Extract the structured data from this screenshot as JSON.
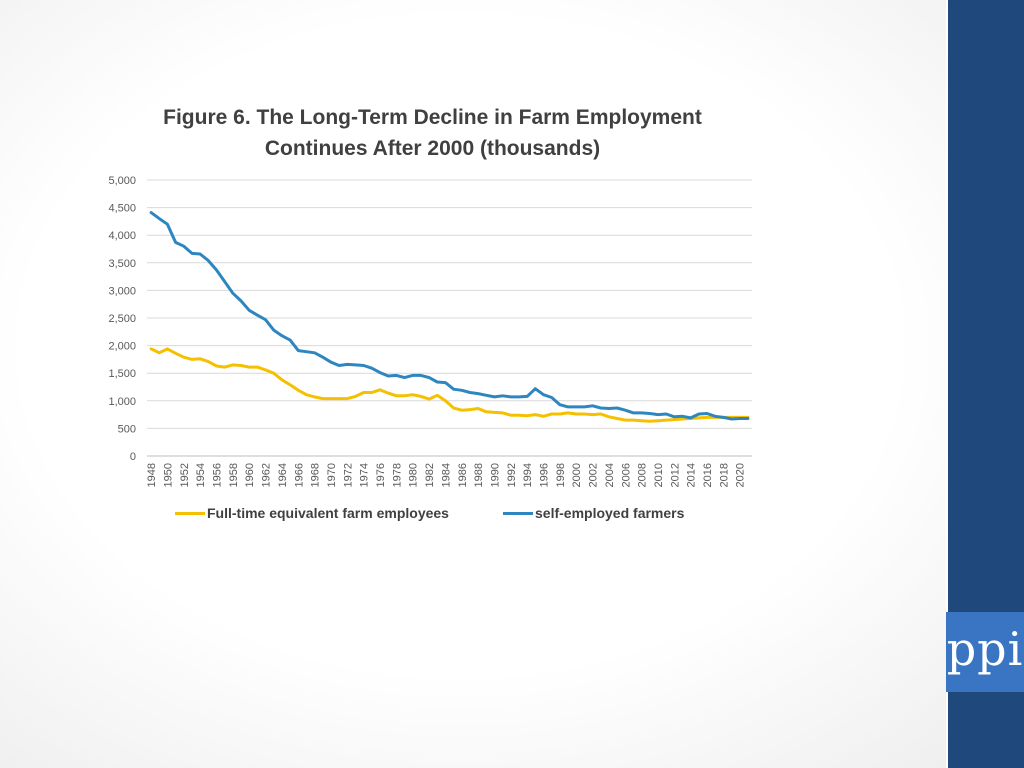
{
  "brand": {
    "logo_text": "ppi",
    "bar_color": "#1f497d",
    "logo_bg": "#3a75c4"
  },
  "chart_data": {
    "type": "line",
    "title": "Figure 6. The Long-Term Decline in Farm Employment Continues After 2000 (thousands)",
    "xlabel": "",
    "ylabel": "",
    "ylim": [
      0,
      5000
    ],
    "y_ticks": [
      "0",
      "500",
      "1,000",
      "1,500",
      "2,000",
      "2,500",
      "3,000",
      "3,500",
      "4,000",
      "4,500",
      "5,000"
    ],
    "x_tick_labels": [
      "1948",
      "1950",
      "1952",
      "1954",
      "1956",
      "1958",
      "1960",
      "1962",
      "1964",
      "1966",
      "1968",
      "1970",
      "1972",
      "1974",
      "1976",
      "1978",
      "1980",
      "1982",
      "1984",
      "1986",
      "1988",
      "1990",
      "1992",
      "1994",
      "1996",
      "1998",
      "2000",
      "2002",
      "2004",
      "2006",
      "2008",
      "2010",
      "2012",
      "2014",
      "2016",
      "2018",
      "2020"
    ],
    "grid": true,
    "legend_position": "bottom",
    "x": [
      1948,
      1949,
      1950,
      1951,
      1952,
      1953,
      1954,
      1955,
      1956,
      1957,
      1958,
      1959,
      1960,
      1961,
      1962,
      1963,
      1964,
      1965,
      1966,
      1967,
      1968,
      1969,
      1970,
      1971,
      1972,
      1973,
      1974,
      1975,
      1976,
      1977,
      1978,
      1979,
      1980,
      1981,
      1982,
      1983,
      1984,
      1985,
      1986,
      1987,
      1988,
      1989,
      1990,
      1991,
      1992,
      1993,
      1994,
      1995,
      1996,
      1997,
      1998,
      1999,
      2000,
      2001,
      2002,
      2003,
      2004,
      2005,
      2006,
      2007,
      2008,
      2009,
      2010,
      2011,
      2012,
      2013,
      2014,
      2015,
      2016,
      2017,
      2018,
      2019,
      2020,
      2021
    ],
    "series": [
      {
        "name": "Full-time equivalent farm employees",
        "color": "#f5c000",
        "values": [
          1940,
          1870,
          1940,
          1860,
          1790,
          1750,
          1760,
          1710,
          1630,
          1610,
          1650,
          1640,
          1610,
          1610,
          1560,
          1500,
          1380,
          1290,
          1190,
          1110,
          1070,
          1040,
          1040,
          1040,
          1040,
          1080,
          1150,
          1150,
          1200,
          1140,
          1090,
          1090,
          1110,
          1080,
          1030,
          1100,
          1000,
          870,
          830,
          840,
          860,
          800,
          790,
          780,
          740,
          740,
          730,
          750,
          720,
          760,
          760,
          780,
          760,
          760,
          750,
          760,
          710,
          680,
          650,
          650,
          640,
          630,
          640,
          650,
          660,
          670,
          680,
          690,
          700,
          700,
          700,
          700,
          700,
          700
        ]
      },
      {
        "name": "self-employed farmers",
        "color": "#2e86c1",
        "values": [
          4410,
          4300,
          4200,
          3870,
          3800,
          3670,
          3660,
          3540,
          3370,
          3160,
          2950,
          2810,
          2640,
          2550,
          2470,
          2280,
          2180,
          2100,
          1910,
          1890,
          1870,
          1790,
          1700,
          1640,
          1660,
          1650,
          1640,
          1590,
          1510,
          1450,
          1460,
          1420,
          1460,
          1460,
          1420,
          1340,
          1330,
          1210,
          1190,
          1150,
          1130,
          1100,
          1070,
          1090,
          1070,
          1070,
          1080,
          1220,
          1110,
          1060,
          930,
          890,
          890,
          890,
          910,
          870,
          860,
          870,
          830,
          780,
          780,
          770,
          750,
          760,
          710,
          720,
          690,
          760,
          770,
          720,
          700,
          670,
          680,
          680
        ]
      }
    ]
  }
}
